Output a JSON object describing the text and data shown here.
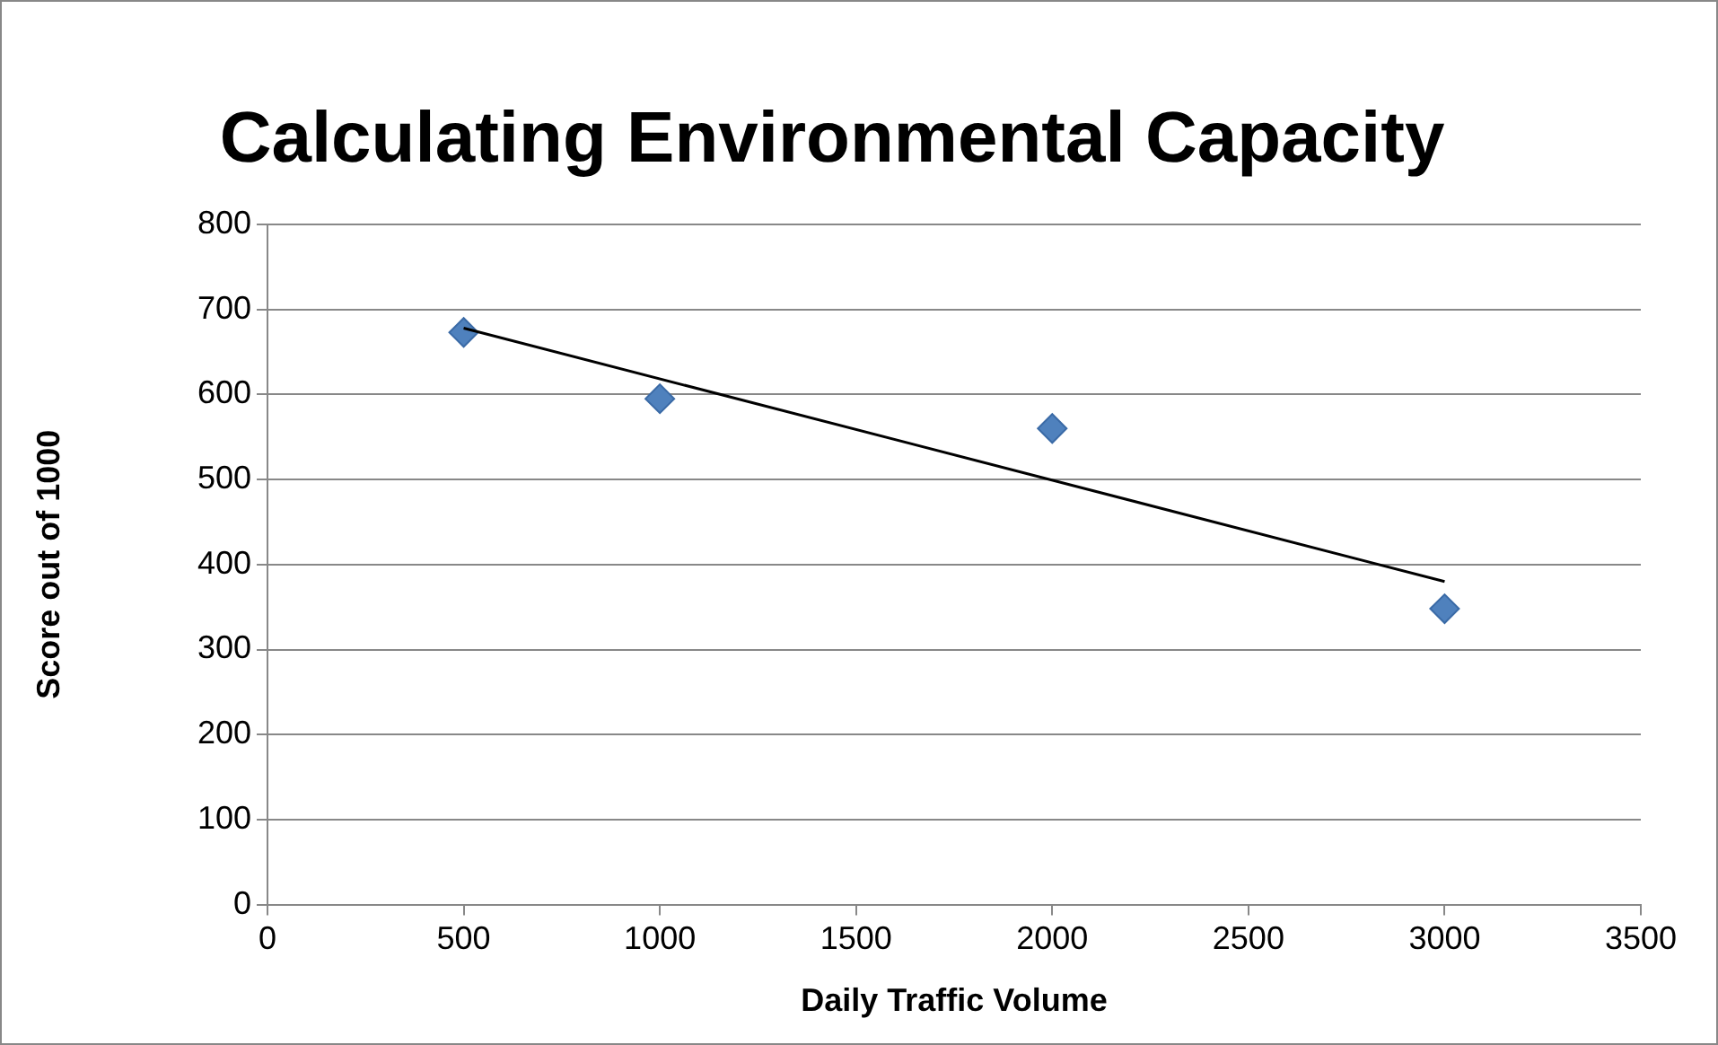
{
  "chart_data": {
    "type": "scatter",
    "title": "Calculating Environmental Capacity",
    "xlabel": "Daily Traffic Volume",
    "ylabel": "Score out of 1000",
    "x": [
      500,
      1000,
      2000,
      3000
    ],
    "series": [
      {
        "color": "#4f81bd",
        "values": [
          673,
          595,
          560,
          348
        ],
        "marker": "diamond"
      },
      {
        "type": "line",
        "color": "#000000",
        "x": [
          500,
          3000
        ],
        "values": [
          678,
          380
        ],
        "marker": "none",
        "line_style": "solid"
      }
    ],
    "xlim": [
      0,
      3500
    ],
    "ylim": [
      0,
      800
    ],
    "xticks": [
      0,
      500,
      1000,
      1500,
      2000,
      2500,
      3000,
      3500
    ],
    "yticks": [
      0,
      100,
      200,
      300,
      400,
      500,
      600,
      700,
      800
    ],
    "grid": "y",
    "legend": false
  }
}
